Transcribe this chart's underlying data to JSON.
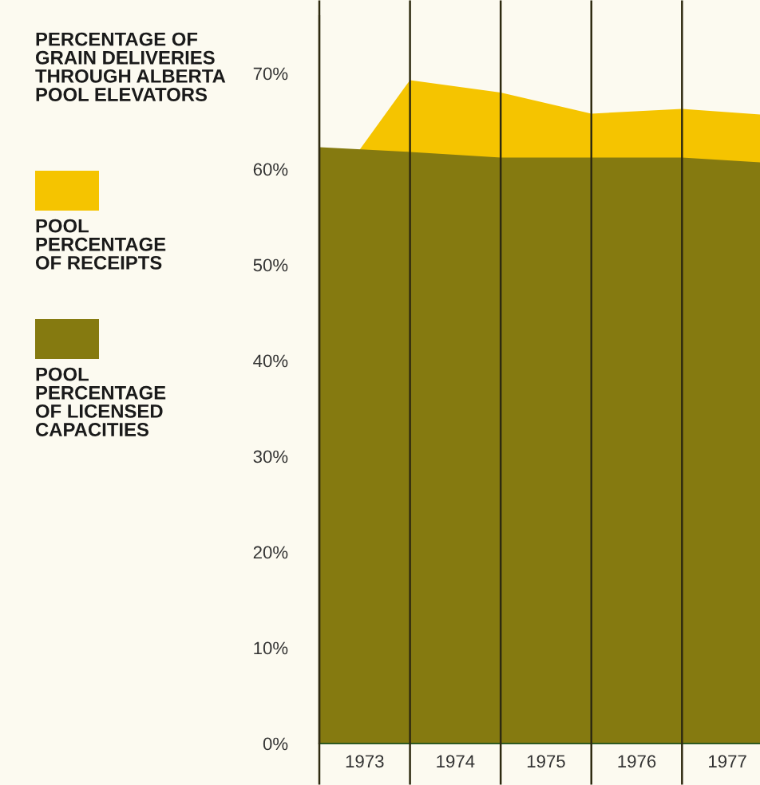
{
  "chart_data": {
    "type": "area",
    "title": "PERCENTAGE OF\nGRAIN DELIVERIES\nTHROUGH ALBERTA\nPOOL ELEVATORS",
    "x": [
      1972.5,
      1973.5,
      1974.5,
      1975.5,
      1976.5,
      1977.36
    ],
    "series": [
      {
        "name": "POOL\nPERCENTAGE\nOF RECEIPTS",
        "color": "#f5c400",
        "values": [
          56.2,
          69.3,
          68,
          65.8,
          66.3,
          65.7
        ]
      },
      {
        "name": "POOL\nPERCENTAGE\nOF LICENSED\nCAPACITIES",
        "color": "#857a10",
        "values": [
          62.3,
          61.8,
          61.2,
          61.2,
          61.2,
          60.7
        ]
      }
    ],
    "xlim": [
      1972.5,
      1977.36
    ],
    "xticks": [
      {
        "value": 1972.5,
        "label": null
      },
      1973,
      {
        "value": 1973.5,
        "label": null
      },
      1974,
      {
        "value": 1974.5,
        "label": null
      },
      1975,
      {
        "value": 1975.5,
        "label": null
      },
      1976,
      {
        "value": 1976.5,
        "label": null
      },
      1977
    ],
    "ylim": [
      0,
      76
    ],
    "yticks": [
      {
        "value": 0,
        "label": "0%"
      },
      {
        "value": 10,
        "label": "10%"
      },
      {
        "value": 20,
        "label": "20%"
      },
      {
        "value": 30,
        "label": "30%"
      },
      {
        "value": 40,
        "label": "40%"
      },
      {
        "value": 50,
        "label": "50%"
      },
      {
        "value": 60,
        "label": "60%"
      },
      {
        "value": 70,
        "label": "70%"
      }
    ],
    "grid": "x",
    "legend": "left"
  }
}
